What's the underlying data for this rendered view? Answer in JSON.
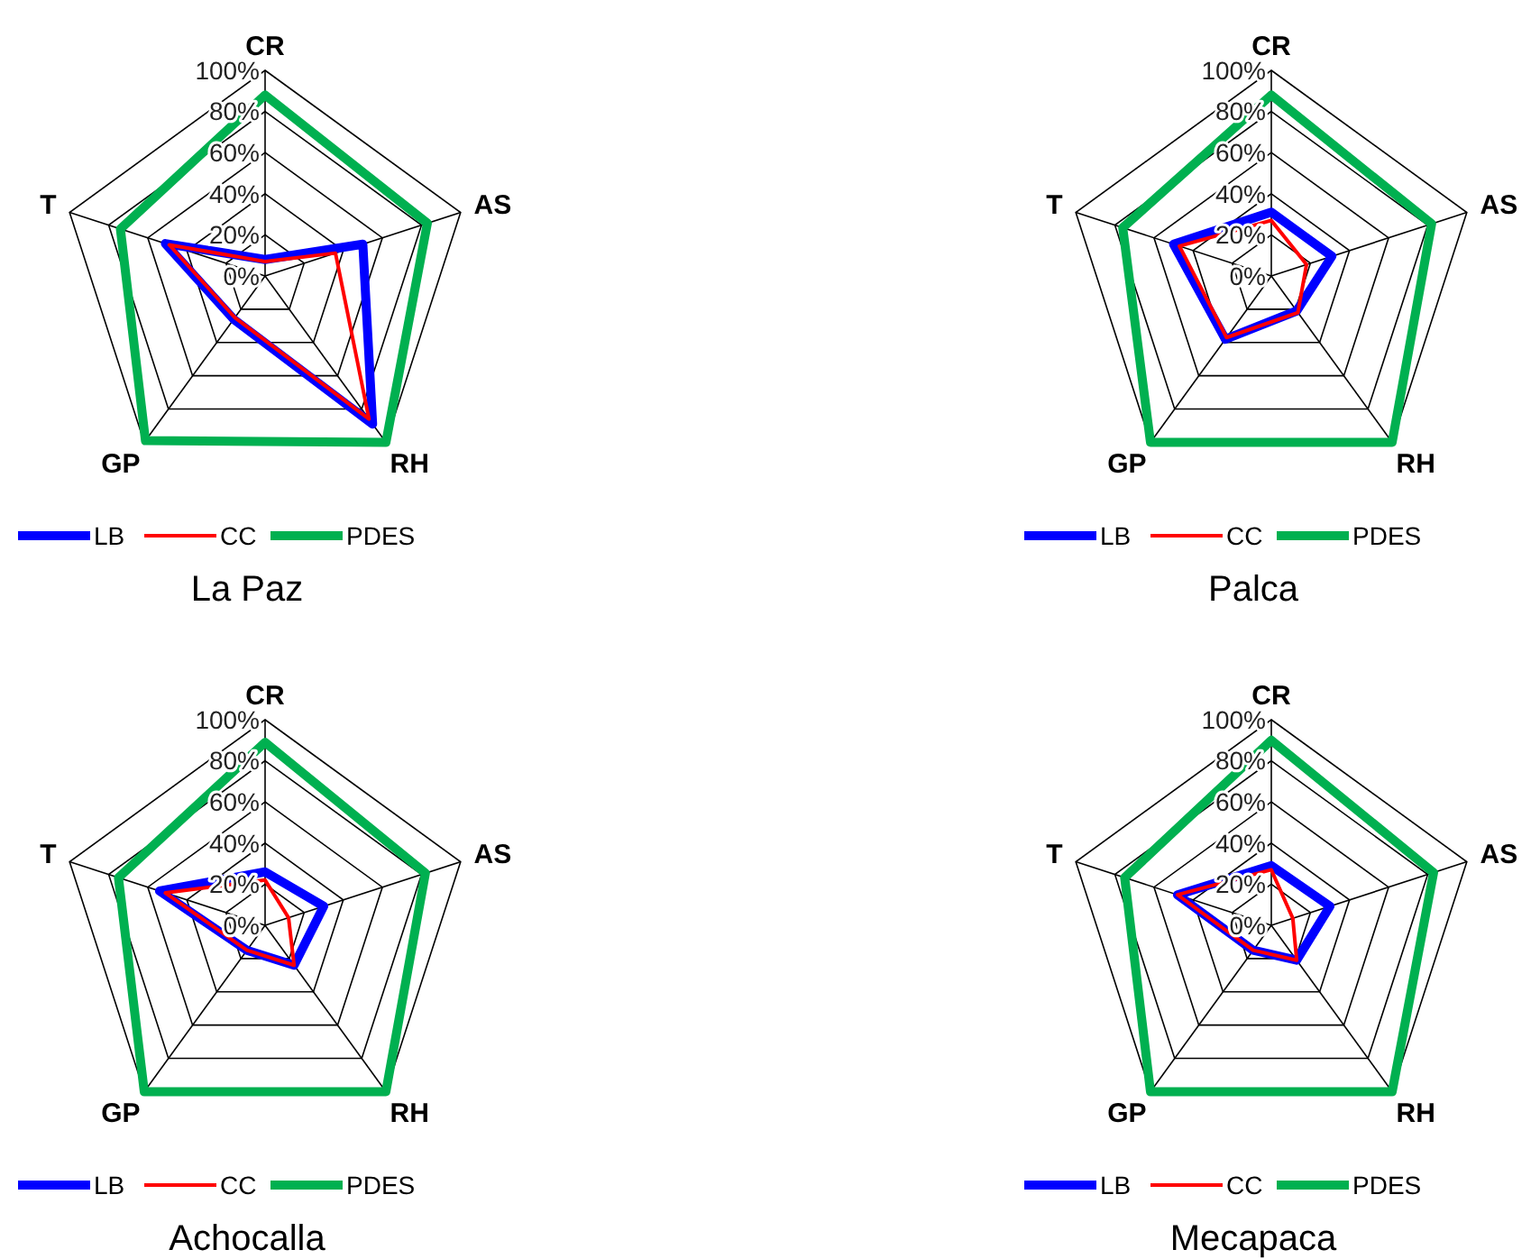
{
  "chart_data": [
    {
      "type": "radar",
      "title": "La Paz",
      "categories": [
        "CR",
        "AS",
        "RH",
        "GP",
        "T"
      ],
      "ylim": [
        0,
        100
      ],
      "yticks": [
        {
          "value": 0,
          "label": "0%"
        },
        {
          "value": 20,
          "label": "20%"
        },
        {
          "value": 40,
          "label": "40%"
        },
        {
          "value": 60,
          "label": "60%"
        },
        {
          "value": 80,
          "label": "80%"
        },
        {
          "value": 100,
          "label": "100%"
        }
      ],
      "grid": true,
      "legend": "bottom",
      "series": [
        {
          "name": "LB",
          "color": "#0000ff",
          "values": [
            8,
            50,
            89,
            26,
            51
          ]
        },
        {
          "name": "CC",
          "color": "#ff0000",
          "values": [
            7,
            36,
            86,
            25,
            49
          ]
        },
        {
          "name": "PDES",
          "color": "#00b050",
          "values": [
            88,
            83,
            100,
            99,
            74
          ]
        }
      ]
    },
    {
      "type": "radar",
      "title": "Palca",
      "categories": [
        "CR",
        "AS",
        "RH",
        "GP",
        "T"
      ],
      "ylim": [
        0,
        100
      ],
      "yticks": [
        {
          "value": 0,
          "label": "0%"
        },
        {
          "value": 20,
          "label": "20%"
        },
        {
          "value": 40,
          "label": "40%"
        },
        {
          "value": 60,
          "label": "60%"
        },
        {
          "value": 80,
          "label": "80%"
        },
        {
          "value": 100,
          "label": "100%"
        }
      ],
      "grid": true,
      "legend": "bottom",
      "series": [
        {
          "name": "LB",
          "color": "#0000ff",
          "values": [
            31,
            31,
            21,
            38,
            50
          ]
        },
        {
          "name": "CC",
          "color": "#ff0000",
          "values": [
            27,
            18,
            22,
            37,
            47
          ]
        },
        {
          "name": "PDES",
          "color": "#00b050",
          "values": [
            88,
            82,
            100,
            100,
            76
          ]
        }
      ]
    },
    {
      "type": "radar",
      "title": "Achocalla",
      "categories": [
        "CR",
        "AS",
        "RH",
        "GP",
        "T"
      ],
      "ylim": [
        0,
        100
      ],
      "yticks": [
        {
          "value": 0,
          "label": "0%"
        },
        {
          "value": 20,
          "label": "20%"
        },
        {
          "value": 40,
          "label": "40%"
        },
        {
          "value": 60,
          "label": "60%"
        },
        {
          "value": 80,
          "label": "80%"
        },
        {
          "value": 100,
          "label": "100%"
        }
      ],
      "grid": true,
      "legend": "bottom",
      "series": [
        {
          "name": "LB",
          "color": "#0000ff",
          "values": [
            26,
            30,
            24,
            15,
            54
          ]
        },
        {
          "name": "CC",
          "color": "#ff0000",
          "values": [
            22,
            12,
            24,
            15,
            51
          ]
        },
        {
          "name": "PDES",
          "color": "#00b050",
          "values": [
            89,
            82,
            100,
            100,
            75
          ]
        }
      ]
    },
    {
      "type": "radar",
      "title": "Mecapaca",
      "categories": [
        "CR",
        "AS",
        "RH",
        "GP",
        "T"
      ],
      "ylim": [
        0,
        100
      ],
      "yticks": [
        {
          "value": 0,
          "label": "0%"
        },
        {
          "value": 20,
          "label": "20%"
        },
        {
          "value": 40,
          "label": "40%"
        },
        {
          "value": 60,
          "label": "60%"
        },
        {
          "value": 80,
          "label": "80%"
        },
        {
          "value": 100,
          "label": "100%"
        }
      ],
      "grid": true,
      "legend": "bottom",
      "series": [
        {
          "name": "LB",
          "color": "#0000ff",
          "values": [
            29,
            30,
            21,
            15,
            48
          ]
        },
        {
          "name": "CC",
          "color": "#ff0000",
          "values": [
            27,
            11,
            21,
            15,
            48
          ]
        },
        {
          "name": "PDES",
          "color": "#00b050",
          "values": [
            90,
            83,
            100,
            100,
            75
          ]
        }
      ]
    }
  ]
}
